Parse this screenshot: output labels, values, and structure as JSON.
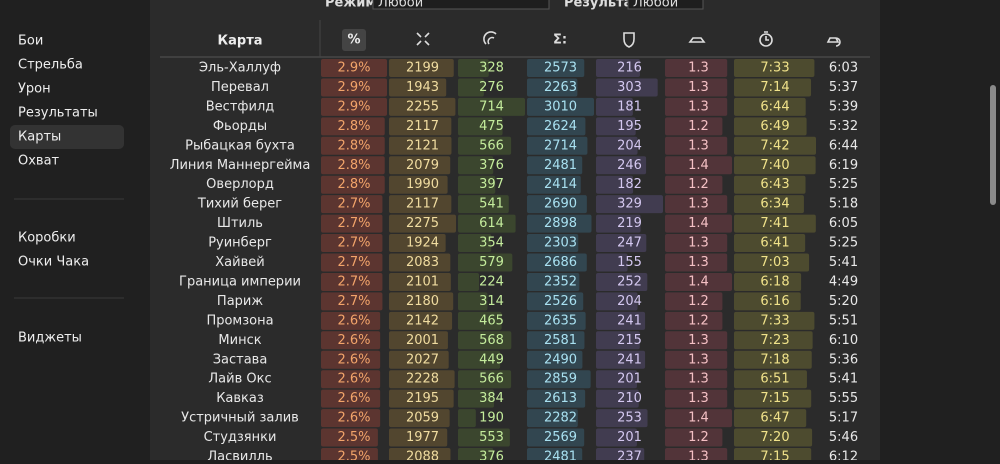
{
  "filters": {
    "mode_label": "Режим:",
    "mode_value": "Любой",
    "result_label": "Результат:",
    "result_value": "Любой"
  },
  "sidebar": {
    "groups": [
      [
        "Бои",
        "Стрельба",
        "Урон",
        "Результаты",
        "Карты",
        "Охват"
      ],
      [
        "Коробки",
        "Очки Чака"
      ],
      [
        "Виджеты"
      ]
    ],
    "selected": "Карты"
  },
  "table": {
    "header": {
      "map": "Карта",
      "percent": "%",
      "sum": "Σ:"
    },
    "rows": [
      [
        "Эль-Халлуф",
        "2.9%",
        "2199",
        "328",
        "2573",
        "216",
        "1.3",
        "7:33",
        "6:03"
      ],
      [
        "Перевал",
        "2.9%",
        "1943",
        "276",
        "2263",
        "303",
        "1.3",
        "7:14",
        "5:37"
      ],
      [
        "Вестфилд",
        "2.9%",
        "2255",
        "714",
        "3010",
        "181",
        "1.3",
        "6:44",
        "5:39"
      ],
      [
        "Фьорды",
        "2.8%",
        "2117",
        "475",
        "2624",
        "195",
        "1.2",
        "6:49",
        "5:32"
      ],
      [
        "Рыбацкая бухта",
        "2.8%",
        "2121",
        "566",
        "2714",
        "204",
        "1.3",
        "7:42",
        "6:44"
      ],
      [
        "Линия Маннергейма",
        "2.8%",
        "2079",
        "376",
        "2481",
        "246",
        "1.4",
        "7:40",
        "6:19"
      ],
      [
        "Оверлорд",
        "2.8%",
        "1990",
        "397",
        "2414",
        "182",
        "1.2",
        "6:43",
        "5:25"
      ],
      [
        "Тихий берег",
        "2.7%",
        "2117",
        "541",
        "2690",
        "329",
        "1.3",
        "6:34",
        "5:18"
      ],
      [
        "Штиль",
        "2.7%",
        "2275",
        "614",
        "2898",
        "219",
        "1.4",
        "7:41",
        "6:05"
      ],
      [
        "Руинберг",
        "2.7%",
        "1924",
        "354",
        "2303",
        "247",
        "1.3",
        "6:41",
        "5:25"
      ],
      [
        "Хайвей",
        "2.7%",
        "2083",
        "579",
        "2686",
        "155",
        "1.3",
        "7:03",
        "5:41"
      ],
      [
        "Граница империи",
        "2.7%",
        "2101",
        "224",
        "2352",
        "252",
        "1.4",
        "6:18",
        "4:49"
      ],
      [
        "Париж",
        "2.7%",
        "2180",
        "314",
        "2526",
        "204",
        "1.2",
        "6:16",
        "5:20"
      ],
      [
        "Промзона",
        "2.6%",
        "2142",
        "465",
        "2635",
        "241",
        "1.2",
        "7:33",
        "5:51"
      ],
      [
        "Минск",
        "2.6%",
        "2001",
        "568",
        "2581",
        "215",
        "1.3",
        "7:23",
        "6:10"
      ],
      [
        "Застава",
        "2.6%",
        "2027",
        "449",
        "2490",
        "241",
        "1.3",
        "7:18",
        "5:36"
      ],
      [
        "Лайв Окс",
        "2.6%",
        "2228",
        "566",
        "2859",
        "201",
        "1.3",
        "6:51",
        "5:41"
      ],
      [
        "Кавказ",
        "2.6%",
        "2195",
        "384",
        "2613",
        "210",
        "1.3",
        "7:15",
        "5:55"
      ],
      [
        "Устричный залив",
        "2.6%",
        "2059",
        "190",
        "2282",
        "253",
        "1.4",
        "6:47",
        "5:17"
      ],
      [
        "Студзянки",
        "2.5%",
        "1977",
        "553",
        "2569",
        "201",
        "1.2",
        "7:20",
        "5:46"
      ],
      [
        "Ласвилль",
        "2.5%",
        "2088",
        "376",
        "2481",
        "237",
        "1.3",
        "7:15",
        "6:12"
      ]
    ]
  }
}
